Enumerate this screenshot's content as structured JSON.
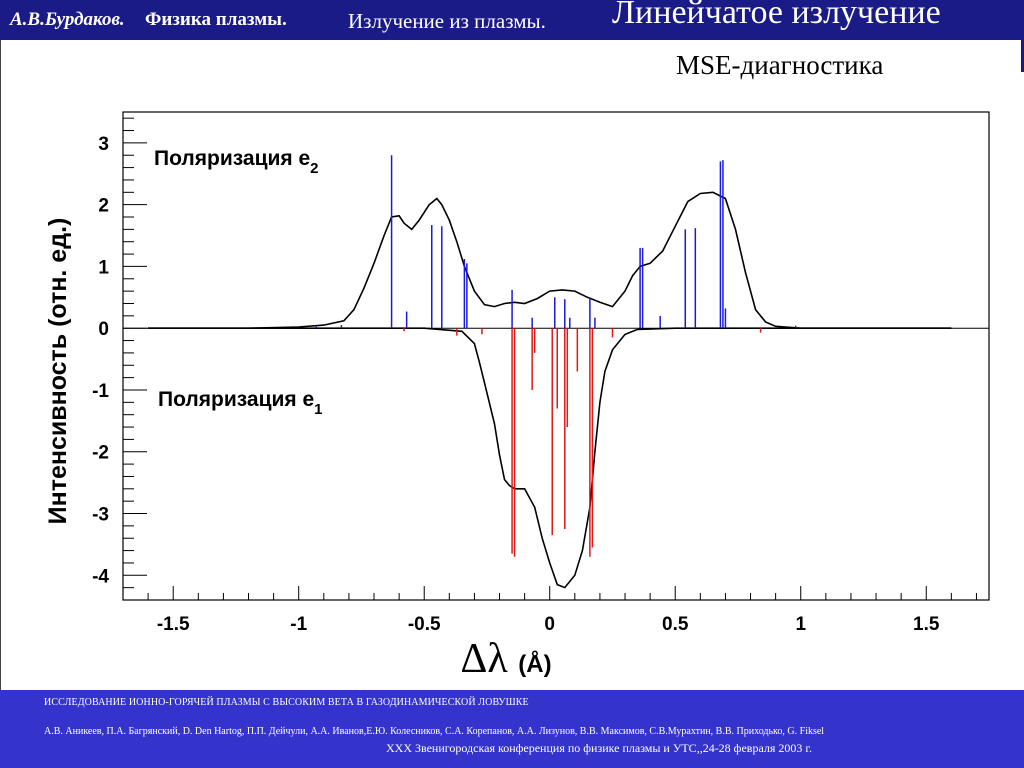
{
  "header": {
    "author": "А.В.Бурдаков.",
    "course": "Физика плазмы.",
    "section": "Излучение из плазмы.",
    "topic": "Линейчатое излучение"
  },
  "subtitle": "MSE-диагностика",
  "footer": {
    "line1": "ИССЛЕДОВАНИЕ ИОННО-ГОРЯЧЕЙ ПЛАЗМЫ С ВЫСОКИМ ВЕТА В ГАЗОДИНАМИЧЕСКОЙ ЛОВУШКЕ",
    "line2": "А.В. Аникеев, П.А. Багрянский, D. Den Hartog, П.П. Дейчули, А.А. Иванов,Е.Ю. Колесников, С.А. Корепанов, А.А. Лизунов, В.В. Максимов, С.В.Мурахтин, В.В. Приходько, G. Fiksel",
    "line3": "XXX Звенигородская конференция по физике плазмы и УТС,,24-28 февраля 2003 г."
  },
  "colors": {
    "header_bg": "#1b1b87",
    "footer_bg": "#3434cc",
    "e2_lines": "#1a1ad8",
    "e1_lines": "#e01818",
    "envelope": "#000000"
  },
  "chart_data": {
    "type": "line",
    "xlabel": "Δλ (Å)",
    "ylabel": "Интенсивность (отн. ед.)",
    "xlim": [
      -1.7,
      1.75
    ],
    "ylim": [
      -4.4,
      3.5
    ],
    "x_ticks": [
      -1.5,
      -1,
      -0.5,
      0,
      0.5,
      1,
      1.5
    ],
    "x_tick_labels": [
      "-1.5",
      "-1",
      "-0.5",
      "0",
      "0.5",
      "1",
      "1.5"
    ],
    "y_ticks": [
      -4,
      -3,
      -2,
      -1,
      0,
      1,
      2,
      3
    ],
    "y_tick_labels": [
      "-4",
      "-3",
      "-2",
      "-1",
      "0",
      "1",
      "2",
      "3"
    ],
    "annotations": [
      {
        "text": "Поляризация e",
        "sub": "2"
      },
      {
        "text": "Поляризация e",
        "sub": "1"
      }
    ],
    "series": [
      {
        "kind": "envelope",
        "x": [
          -1.6,
          -1.2,
          -1.0,
          -0.9,
          -0.82,
          -0.78,
          -0.74,
          -0.7,
          -0.66,
          -0.63,
          -0.6,
          -0.58,
          -0.55,
          -0.52,
          -0.48,
          -0.45,
          -0.43,
          -0.4,
          -0.37,
          -0.34,
          -0.3,
          -0.26,
          -0.22,
          -0.18,
          -0.14,
          -0.1,
          -0.05,
          0.0,
          0.05,
          0.1,
          0.15,
          0.2,
          0.25,
          0.3,
          0.33,
          0.36,
          0.4,
          0.45,
          0.5,
          0.55,
          0.6,
          0.65,
          0.7,
          0.74,
          0.78,
          0.82,
          0.86,
          0.9,
          1.0,
          1.2,
          1.6
        ],
        "values": [
          0,
          0,
          0.02,
          0.05,
          0.12,
          0.3,
          0.65,
          1.05,
          1.5,
          1.8,
          1.82,
          1.7,
          1.6,
          1.75,
          2.0,
          2.1,
          2.0,
          1.75,
          1.4,
          1.0,
          0.6,
          0.38,
          0.35,
          0.4,
          0.42,
          0.4,
          0.48,
          0.6,
          0.62,
          0.6,
          0.5,
          0.42,
          0.35,
          0.6,
          0.85,
          1.0,
          1.05,
          1.25,
          1.65,
          2.05,
          2.18,
          2.2,
          2.1,
          1.6,
          0.9,
          0.3,
          0.1,
          0.03,
          0,
          0,
          0
        ]
      },
      {
        "kind": "envelope",
        "x": [
          -1.6,
          -1.0,
          -0.8,
          -0.5,
          -0.35,
          -0.3,
          -0.28,
          -0.25,
          -0.22,
          -0.2,
          -0.18,
          -0.16,
          -0.14,
          -0.1,
          -0.06,
          -0.03,
          0.0,
          0.03,
          0.06,
          0.1,
          0.13,
          0.16,
          0.18,
          0.2,
          0.22,
          0.25,
          0.3,
          0.35,
          0.5,
          0.8,
          1.6
        ],
        "values": [
          0,
          0,
          0,
          0,
          -0.05,
          -0.25,
          -0.55,
          -1.05,
          -1.55,
          -2.05,
          -2.45,
          -2.55,
          -2.6,
          -2.6,
          -2.9,
          -3.4,
          -3.8,
          -4.15,
          -4.2,
          -4.0,
          -3.6,
          -2.9,
          -2.0,
          -1.2,
          -0.7,
          -0.35,
          -0.1,
          -0.02,
          0,
          0,
          0
        ]
      },
      {
        "kind": "lines-e2",
        "x": [
          -0.93,
          -0.83,
          -0.63,
          -0.57,
          -0.47,
          -0.43,
          -0.34,
          -0.33,
          -0.15,
          -0.07,
          0.02,
          0.06,
          0.08,
          0.16,
          0.18,
          0.36,
          0.37,
          0.44,
          0.54,
          0.58,
          0.68,
          0.69,
          0.7,
          0.98
        ],
        "values": [
          0.03,
          0.05,
          2.8,
          0.27,
          1.67,
          1.65,
          1.12,
          1.05,
          0.62,
          0.17,
          0.5,
          0.47,
          0.17,
          0.5,
          0.17,
          1.3,
          1.3,
          0.2,
          1.6,
          1.62,
          2.7,
          2.72,
          0.32,
          0.04
        ]
      },
      {
        "kind": "lines-e1",
        "x": [
          -0.58,
          -0.37,
          -0.27,
          -0.15,
          -0.14,
          -0.07,
          -0.06,
          0.01,
          0.03,
          0.06,
          0.07,
          0.11,
          0.16,
          0.17,
          0.25,
          0.84
        ],
        "values": [
          -0.05,
          -0.12,
          -0.1,
          -3.65,
          -3.7,
          -1.0,
          -0.4,
          -3.35,
          -1.3,
          -3.25,
          -1.6,
          -0.7,
          -3.7,
          -3.55,
          -0.15,
          -0.07
        ]
      }
    ]
  }
}
